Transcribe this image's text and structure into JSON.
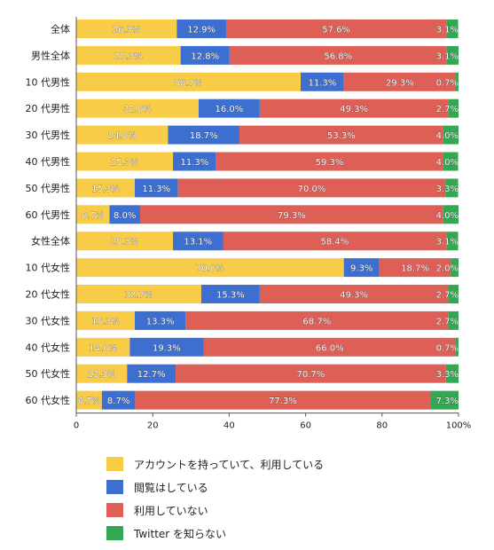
{
  "chart_data": {
    "type": "bar",
    "orientation": "horizontal",
    "stacked": true,
    "percent_suffix": "%",
    "categories": [
      "全体",
      "男性全体",
      "10 代男性",
      "20 代男性",
      "30 代男性",
      "40 代男性",
      "50 代男性",
      "60 代男性",
      "女性全体",
      "10 代女性",
      "20 代女性",
      "30 代女性",
      "40 代女性",
      "50 代女性",
      "60 代女性"
    ],
    "series": [
      {
        "name": "アカウントを持っていて、利用している",
        "color": "#f8cc46",
        "values": [
          26.3,
          27.3,
          58.7,
          32.0,
          24.0,
          25.3,
          15.3,
          8.7,
          25.3,
          70.0,
          32.7,
          15.3,
          14.0,
          13.3,
          6.7
        ]
      },
      {
        "name": "閲覧はしている",
        "color": "#3d6fd0",
        "values": [
          12.9,
          12.8,
          11.3,
          16.0,
          18.7,
          11.3,
          11.3,
          8.0,
          13.1,
          9.3,
          15.3,
          13.3,
          19.3,
          12.7,
          8.7
        ]
      },
      {
        "name": "利用していない",
        "color": "#dd5f55",
        "values": [
          57.6,
          56.8,
          29.3,
          49.3,
          53.3,
          59.3,
          70.0,
          79.3,
          58.4,
          18.7,
          49.3,
          68.7,
          66.0,
          70.7,
          77.3
        ]
      },
      {
        "name": "Twitter を知らない",
        "color": "#33a852",
        "values": [
          3.1,
          3.1,
          0.7,
          2.7,
          4.0,
          4.0,
          3.3,
          4.0,
          3.1,
          2.0,
          2.7,
          2.7,
          0.7,
          3.3,
          7.3
        ]
      }
    ],
    "x_ticks": [
      "0",
      "20",
      "40",
      "60",
      "80",
      "100%"
    ],
    "xlim": [
      0,
      100
    ],
    "grid": false,
    "legend_position": "bottom"
  }
}
